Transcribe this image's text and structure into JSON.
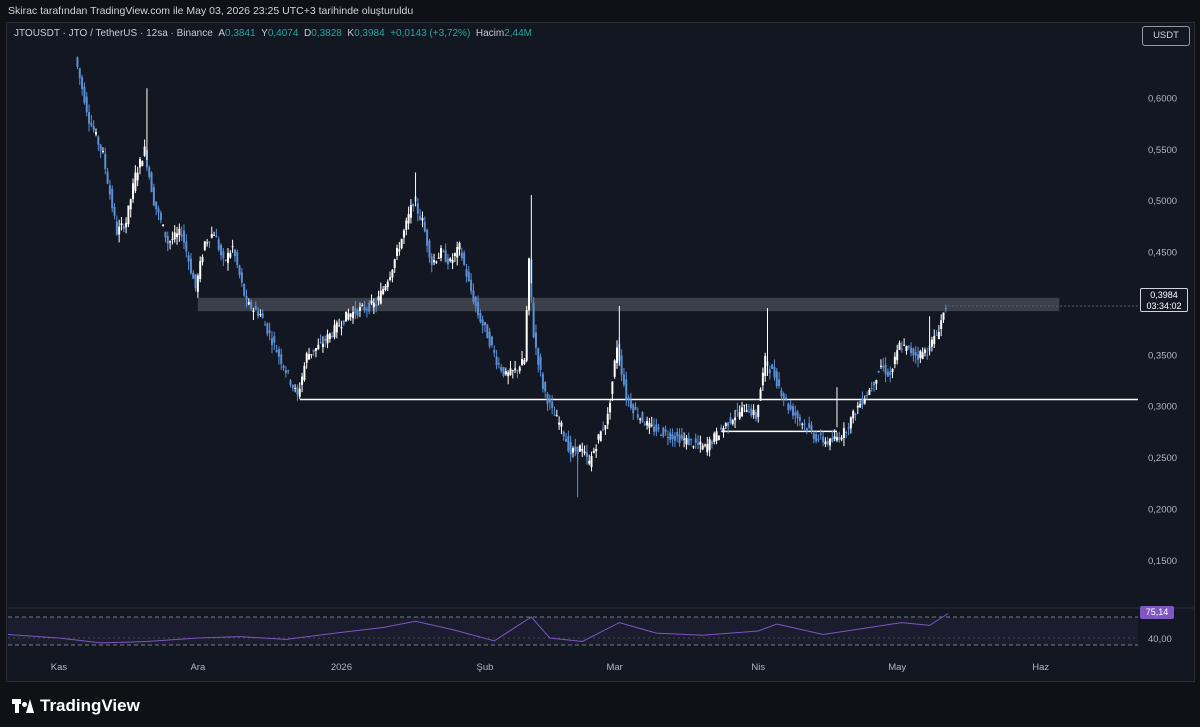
{
  "header": {
    "publish_note": "Skirac tarafından TradingView.com ile May 03, 2026 23:25 UTC+3 tarihinde oluşturuldu"
  },
  "legend": {
    "symbol": "JTOUSDT · JTO / TetherUS · 12sa · Binance",
    "open_label": "A",
    "open": "0,3841",
    "high_label": "Y",
    "high": "0,4074",
    "low_label": "D",
    "low": "0,3828",
    "close_label": "K",
    "close": "0,3984",
    "change": "+0,0143 (+3,72%)",
    "volume_label": "Hacim",
    "volume": "2,44M"
  },
  "unit_button": "USDT",
  "price_tag": {
    "price": "0,3984",
    "countdown": "03:34:02"
  },
  "rsi": {
    "value": "75,14",
    "level_label": "40,00"
  },
  "brand": "TradingView",
  "colors": {
    "background": "#131722",
    "candle_up": "#ffffff",
    "candle_down": "#5b8fd6",
    "zone": "#4a4d57",
    "support_line": "#ffffff",
    "rsi_line": "#7e57c2",
    "rsi_band": "#7e57c2"
  },
  "chart_data": {
    "type": "candlestick",
    "y_tick_labels": [
      "0,6000",
      "0,5500",
      "0,5000",
      "0,4500",
      "0,4000",
      "0,3500",
      "0,3000",
      "0,2500",
      "0,2000",
      "0,1500"
    ],
    "y_ticks": [
      0.6,
      0.55,
      0.5,
      0.45,
      0.4,
      0.35,
      0.3,
      0.25,
      0.2,
      0.15
    ],
    "ylim": [
      0.109,
      0.653
    ],
    "x_labels": [
      "Kas",
      "Ara",
      "2026",
      "Şub",
      "Mar",
      "Nis",
      "May",
      "Haz"
    ],
    "x_label_dates": [
      "2025-11-01",
      "2025-12-01",
      "2026-01-01",
      "2026-02-01",
      "2026-03-01",
      "2026-04-01",
      "2026-05-01",
      "2026-06-01"
    ],
    "xlim": [
      "2025-10-21",
      "2026-06-22"
    ],
    "series": [
      {
        "points": [
          [
            "2025-11-05",
            0.64
          ],
          [
            "2025-11-08",
            0.58
          ],
          [
            "2025-11-11",
            0.545
          ],
          [
            "2025-11-14",
            0.47
          ],
          [
            "2025-11-16",
            0.48
          ],
          [
            "2025-11-18",
            0.525
          ],
          [
            "2025-11-20",
            0.55
          ],
          [
            "2025-11-22",
            0.5
          ],
          [
            "2025-11-25",
            0.46
          ],
          [
            "2025-11-28",
            0.47
          ],
          [
            "2025-12-01",
            0.415
          ],
          [
            "2025-12-03",
            0.46
          ],
          [
            "2025-12-05",
            0.47
          ],
          [
            "2025-12-07",
            0.44
          ],
          [
            "2025-12-09",
            0.455
          ],
          [
            "2025-12-12",
            0.4
          ],
          [
            "2025-12-15",
            0.39
          ],
          [
            "2025-12-18",
            0.36
          ],
          [
            "2025-12-21",
            0.33
          ],
          [
            "2025-12-23",
            0.31
          ],
          [
            "2025-12-25",
            0.35
          ],
          [
            "2025-12-28",
            0.36
          ],
          [
            "2025-12-31",
            0.375
          ],
          [
            "2026-01-03",
            0.39
          ],
          [
            "2026-01-06",
            0.395
          ],
          [
            "2026-01-09",
            0.4
          ],
          [
            "2026-01-12",
            0.43
          ],
          [
            "2026-01-15",
            0.47
          ],
          [
            "2026-01-17",
            0.5
          ],
          [
            "2026-01-19",
            0.48
          ],
          [
            "2026-01-21",
            0.44
          ],
          [
            "2026-01-23",
            0.45
          ],
          [
            "2026-01-25",
            0.44
          ],
          [
            "2026-01-27",
            0.455
          ],
          [
            "2026-01-29",
            0.42
          ],
          [
            "2026-01-31",
            0.39
          ],
          [
            "2026-02-02",
            0.37
          ],
          [
            "2026-02-04",
            0.345
          ],
          [
            "2026-02-06",
            0.33
          ],
          [
            "2026-02-08",
            0.335
          ],
          [
            "2026-02-10",
            0.345
          ],
          [
            "2026-02-11",
            0.44
          ],
          [
            "2026-02-12",
            0.37
          ],
          [
            "2026-02-14",
            0.32
          ],
          [
            "2026-02-16",
            0.295
          ],
          [
            "2026-02-18",
            0.28
          ],
          [
            "2026-02-20",
            0.255
          ],
          [
            "2026-02-22",
            0.26
          ],
          [
            "2026-02-24",
            0.245
          ],
          [
            "2026-02-26",
            0.27
          ],
          [
            "2026-02-28",
            0.29
          ],
          [
            "2026-03-02",
            0.36
          ],
          [
            "2026-03-04",
            0.31
          ],
          [
            "2026-03-06",
            0.295
          ],
          [
            "2026-03-09",
            0.28
          ],
          [
            "2026-03-12",
            0.275
          ],
          [
            "2026-03-15",
            0.27
          ],
          [
            "2026-03-18",
            0.265
          ],
          [
            "2026-03-21",
            0.26
          ],
          [
            "2026-03-24",
            0.275
          ],
          [
            "2026-03-27",
            0.29
          ],
          [
            "2026-03-30",
            0.3
          ],
          [
            "2026-04-01",
            0.29
          ],
          [
            "2026-04-03",
            0.345
          ],
          [
            "2026-04-05",
            0.33
          ],
          [
            "2026-04-08",
            0.3
          ],
          [
            "2026-04-11",
            0.285
          ],
          [
            "2026-04-14",
            0.27
          ],
          [
            "2026-04-17",
            0.265
          ],
          [
            "2026-04-20",
            0.275
          ],
          [
            "2026-04-23",
            0.3
          ],
          [
            "2026-04-26",
            0.32
          ],
          [
            "2026-04-28",
            0.34
          ],
          [
            "2026-04-30",
            0.33
          ],
          [
            "2026-05-02",
            0.36
          ],
          [
            "2026-05-04",
            0.355
          ],
          [
            "2026-05-06",
            0.35
          ],
          [
            "2026-05-08",
            0.355
          ],
          [
            "2026-05-10",
            0.37
          ],
          [
            "2026-05-12",
            0.398
          ]
        ]
      }
    ],
    "annotations": [
      {
        "type": "zone",
        "y0": 0.393,
        "y1": 0.406,
        "x0": "2025-12-01",
        "x1": "2026-06-05"
      },
      {
        "type": "hline",
        "y": 0.307,
        "x0": "2025-12-23",
        "x1": "2026-06-22"
      },
      {
        "type": "hline",
        "y": 0.276,
        "x0": "2026-03-24",
        "x1": "2026-04-18"
      }
    ],
    "rsi": {
      "points": [
        [
          "2025-10-21",
          45
        ],
        [
          "2025-11-01",
          40
        ],
        [
          "2025-11-10",
          33
        ],
        [
          "2025-11-20",
          35
        ],
        [
          "2025-12-01",
          40
        ],
        [
          "2025-12-10",
          42
        ],
        [
          "2025-12-20",
          38
        ],
        [
          "2026-01-01",
          48
        ],
        [
          "2026-01-10",
          55
        ],
        [
          "2026-01-17",
          64
        ],
        [
          "2026-01-25",
          52
        ],
        [
          "2026-02-03",
          36
        ],
        [
          "2026-02-11",
          70
        ],
        [
          "2026-02-15",
          40
        ],
        [
          "2026-02-22",
          35
        ],
        [
          "2026-03-02",
          62
        ],
        [
          "2026-03-10",
          47
        ],
        [
          "2026-03-20",
          44
        ],
        [
          "2026-04-01",
          50
        ],
        [
          "2026-04-05",
          60
        ],
        [
          "2026-04-15",
          45
        ],
        [
          "2026-04-25",
          55
        ],
        [
          "2026-05-02",
          62
        ],
        [
          "2026-05-08",
          58
        ],
        [
          "2026-05-12",
          75
        ]
      ],
      "upper": 70,
      "lower": 30,
      "mid": 40
    }
  }
}
